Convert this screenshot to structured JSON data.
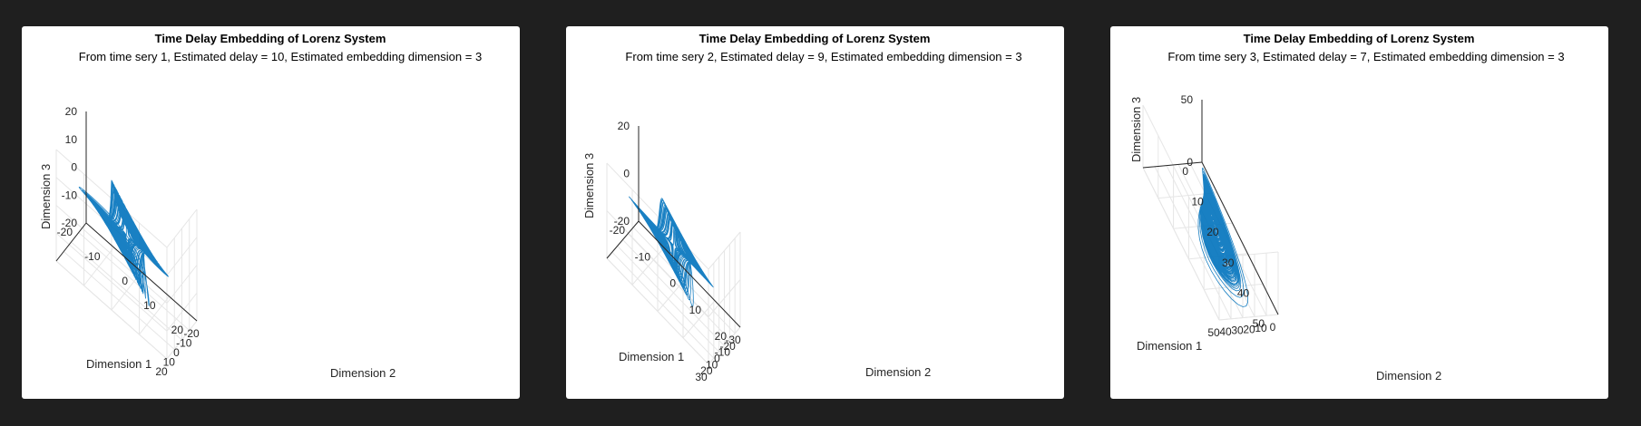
{
  "colors": {
    "background": "#1f1f1f",
    "panel": "#ffffff",
    "curve": "#0072bd",
    "grid": "#e6e6e6",
    "axis": "#262626"
  },
  "chart_data": [
    {
      "type": "line3d",
      "title": "Time Delay Embedding of Lorenz System",
      "subtitle": "From time sery 1, Estimated delay = 10, Estimated embedding dimension = 3",
      "xlabel": "Dimension 1",
      "ylabel": "Dimension 2",
      "zlabel": "Dimension 3",
      "xlim": [
        -20,
        20
      ],
      "ylim": [
        -20,
        20
      ],
      "zlim": [
        -20,
        20
      ],
      "xticks": [
        "-20",
        "-10",
        "0",
        "10",
        "20"
      ],
      "yticks": [
        "-20",
        "-10",
        "0",
        "10",
        "20"
      ],
      "zticks": [
        "-20",
        "-10",
        "0",
        "10",
        "20"
      ],
      "series": [
        {
          "delay": 10
        }
      ],
      "grid": true
    },
    {
      "type": "line3d",
      "title": "Time Delay Embedding of Lorenz System",
      "subtitle": "From time sery 2, Estimated delay = 9, Estimated embedding dimension = 3",
      "xlabel": "Dimension 1",
      "ylabel": "Dimension 2",
      "zlabel": "Dimension 3",
      "xlim": [
        -20,
        20
      ],
      "ylim": [
        -30,
        30
      ],
      "zlim": [
        -20,
        20
      ],
      "xticks": [
        "-20",
        "-10",
        "0",
        "10",
        "20"
      ],
      "yticks": [
        "-30",
        "-20",
        "-10",
        "0",
        "10",
        "20",
        "30"
      ],
      "zticks": [
        "-20",
        "0",
        "20"
      ],
      "series": [
        {
          "delay": 9
        }
      ],
      "grid": true
    },
    {
      "type": "line3d",
      "title": "Time Delay Embedding of Lorenz System",
      "subtitle": "From time sery 3, Estimated delay = 7, Estimated embedding dimension = 3",
      "xlabel": "Dimension 1",
      "ylabel": "Dimension 2",
      "zlabel": "Dimension 3",
      "xlim": [
        0,
        50
      ],
      "ylim": [
        0,
        50
      ],
      "zlim": [
        0,
        50
      ],
      "xticks": [
        "0",
        "10",
        "20",
        "30",
        "40",
        "50"
      ],
      "yticks": [
        "0",
        "10",
        "20",
        "30",
        "40",
        "50"
      ],
      "zticks": [
        "0",
        "50"
      ],
      "series": [
        {
          "delay": 7
        }
      ],
      "grid": true
    }
  ]
}
